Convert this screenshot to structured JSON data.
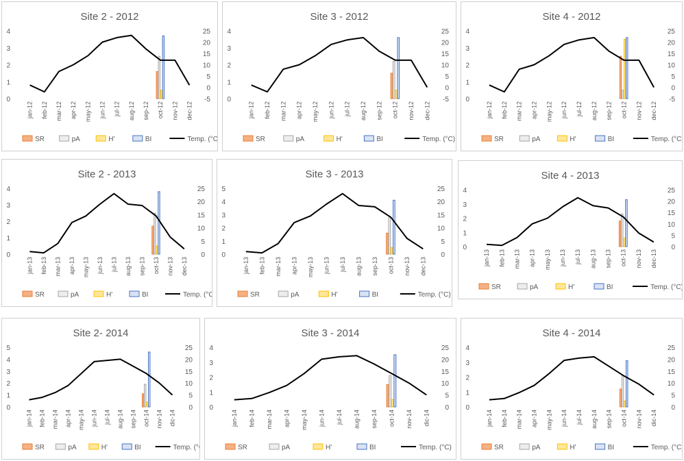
{
  "legend": {
    "sr": "SR",
    "pa": "pA",
    "h": "H'",
    "bi": "BI",
    "temp": "Temp. (°C)"
  },
  "colors": {
    "sr_fill": "#f4b183",
    "sr_stroke": "#ed7d31",
    "pa_fill": "#ededed",
    "pa_stroke": "#a5a5a5",
    "h_fill": "#ffe699",
    "h_stroke": "#ffc000",
    "bi_fill": "#dae3f3",
    "bi_stroke": "#4472c4",
    "temp": "#000000"
  },
  "chart_data": [
    {
      "type": "bar",
      "title": "Site 2 - 2012",
      "categories": [
        "jan-12",
        "feb-12",
        "mar-12",
        "apr-12",
        "may-12",
        "jun-12",
        "jul-12",
        "aug-12",
        "sep-12",
        "oct-12",
        "nov-12",
        "dec-12"
      ],
      "bar_month_index": 9,
      "bars": {
        "SR": 1.6,
        "pA": 2.5,
        "H'": 0.5,
        "BI": 3.7
      },
      "ylim": [
        0,
        4
      ],
      "y2lim": [
        -5,
        25
      ],
      "temperature": [
        1,
        -2,
        7,
        10,
        14,
        20,
        22,
        23,
        17,
        12,
        12,
        1
      ]
    },
    {
      "type": "bar",
      "title": "Site 3 - 2012",
      "categories": [
        "jan-12",
        "feb-12",
        "mar-12",
        "apr-12",
        "may-12",
        "jun-12",
        "jul-12",
        "aug-12",
        "sep-12",
        "oct-12",
        "nov-12",
        "dec-12"
      ],
      "bar_month_index": 9,
      "bars": {
        "SR": 1.5,
        "pA": 2.2,
        "H'": 0.5,
        "BI": 3.6
      },
      "ylim": [
        0,
        4
      ],
      "y2lim": [
        -5,
        25
      ],
      "temperature": [
        1,
        -2,
        8,
        10,
        14,
        19,
        21,
        22,
        16,
        12,
        12,
        0
      ]
    },
    {
      "type": "bar",
      "title": "Site 4 - 2012",
      "categories": [
        "jan-12",
        "feb-12",
        "mar-12",
        "apr-12",
        "may-12",
        "jun-12",
        "jul-12",
        "aug-12",
        "sep-12",
        "oct-12",
        "nov-12",
        "dec-12"
      ],
      "bar_month_index": 9,
      "bars": {
        "SR": 2.5,
        "pA": 0.5,
        "H'": 3.5,
        "BI": 3.6
      },
      "ylim": [
        0,
        4
      ],
      "y2lim": [
        -5,
        25
      ],
      "temperature": [
        1,
        -2,
        8,
        10,
        14,
        19,
        21,
        22,
        16,
        12,
        12,
        0
      ]
    },
    {
      "type": "bar",
      "title": "Site 2 - 2013",
      "categories": [
        "jan-13",
        "feb-13",
        "mar-13",
        "apr-13",
        "may-13",
        "jun-13",
        "jul-13",
        "aug-13",
        "sep-13",
        "oct-13",
        "nov-13",
        "dec-13"
      ],
      "bar_month_index": 9,
      "bars": {
        "SR": 1.7,
        "pA": 2.5,
        "H'": 0.5,
        "BI": 3.8
      },
      "ylim": [
        0,
        4
      ],
      "y2lim": [
        0,
        25
      ],
      "temperature": [
        1,
        0.5,
        4,
        12,
        14.5,
        19,
        23,
        19,
        18.5,
        14.5,
        6.5,
        2
      ]
    },
    {
      "type": "bar",
      "title": "Site 3 - 2013",
      "categories": [
        "jan-13",
        "feb-13",
        "mar-13",
        "apr-13",
        "may-13",
        "jun-13",
        "jul-13",
        "aug-13",
        "sep-13",
        "oct-13",
        "nov-13",
        "dec-13"
      ],
      "bar_month_index": 9,
      "bars": {
        "SR": 1.6,
        "pA": 2.8,
        "H'": 0.5,
        "BI": 4.1
      },
      "ylim": [
        0,
        5
      ],
      "y2lim": [
        0,
        25
      ],
      "temperature": [
        1,
        0.5,
        4,
        12,
        14.5,
        19,
        23,
        18.5,
        18,
        14,
        6,
        2
      ]
    },
    {
      "type": "bar",
      "title": "Site 4 - 2013",
      "categories": [
        "jan-13",
        "feb-13",
        "mar-13",
        "apr-13",
        "may-13",
        "jun-13",
        "jul-13",
        "aug-13",
        "sep-13",
        "oct-13",
        "nov-13",
        "dec-13"
      ],
      "bar_month_index": 9,
      "bars": {
        "SR": 1.8,
        "pA": 2.3,
        "H'": 0.6,
        "BI": 3.3
      },
      "ylim": [
        0,
        4
      ],
      "y2lim": [
        0,
        25
      ],
      "temperature": [
        1,
        0.5,
        4,
        10,
        12.5,
        17.5,
        21.5,
        18,
        17,
        13,
        6,
        2
      ]
    },
    {
      "type": "bar",
      "title": "Site 2- 2014",
      "categories": [
        "jan-14",
        "feb-14",
        "mar-14",
        "apr-14",
        "may-14",
        "jun-14",
        "jul-14",
        "aug-14",
        "sep-14",
        "oct-14",
        "nov-14",
        "dic-14"
      ],
      "bar_month_index": 9,
      "bars": {
        "SR": 1.1,
        "pA": 1.9,
        "H'": 0.4,
        "BI": 4.6
      },
      "ylim": [
        0,
        5
      ],
      "y2lim": [
        0,
        25
      ],
      "temperature": [
        3,
        4,
        6,
        9,
        14,
        19,
        19.5,
        20,
        17,
        14,
        10,
        5
      ]
    },
    {
      "type": "bar",
      "title": "Site 3 - 2014",
      "categories": [
        "jan-14",
        "feb-14",
        "mar-14",
        "apr-14",
        "may-14",
        "jun-14",
        "jul-14",
        "aug-14",
        "sep-14",
        "oct-14",
        "nov-14",
        "dic-14"
      ],
      "bar_month_index": 9,
      "bars": {
        "SR": 1.5,
        "pA": 2.1,
        "H'": 0.5,
        "BI": 3.5
      },
      "ylim": [
        0,
        4
      ],
      "y2lim": [
        0,
        25
      ],
      "temperature": [
        3,
        3.5,
        6,
        9,
        14,
        20,
        21,
        21.5,
        18,
        14,
        10,
        5
      ]
    },
    {
      "type": "bar",
      "title": "Site 4 - 2014",
      "categories": [
        "jan-14",
        "feb-14",
        "mar-14",
        "apr-14",
        "may-14",
        "jun-14",
        "jul-14",
        "aug-14",
        "sep-14",
        "oct-14",
        "nov-14",
        "dic-14"
      ],
      "bar_month_index": 9,
      "bars": {
        "SR": 1.2,
        "pA": 2.1,
        "H'": 0.4,
        "BI": 3.1
      },
      "ylim": [
        0,
        4
      ],
      "y2lim": [
        0,
        25
      ],
      "temperature": [
        3,
        3.5,
        6,
        9,
        14,
        19.5,
        20.5,
        21,
        17,
        13,
        9.5,
        5
      ]
    }
  ]
}
